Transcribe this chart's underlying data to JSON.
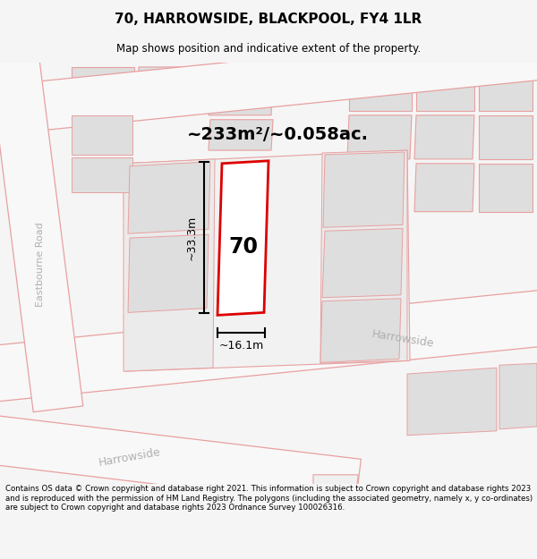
{
  "title": "70, HARROWSIDE, BLACKPOOL, FY4 1LR",
  "subtitle": "Map shows position and indicative extent of the property.",
  "area_text": "~233m²/~0.058ac.",
  "width_text": "~16.1m",
  "height_text": "~33.3m",
  "label_text": "70",
  "footer": "Contains OS data © Crown copyright and database right 2021. This information is subject to Crown copyright and database rights 2023 and is reproduced with the permission of HM Land Registry. The polygons (including the associated geometry, namely x, y co-ordinates) are subject to Crown copyright and database rights 2023 Ordnance Survey 100026316.",
  "bg_color": "#f5f5f5",
  "map_bg": "#ffffff",
  "building_fill": "#dedede",
  "road_line": "#e8a0a0",
  "highlight_line": "#dd0000",
  "street_color": "#b0b0b0",
  "street_name_harrowside1": "Harrowside",
  "street_name_harrowside2": "Harrowside",
  "street_name_eastbourne": "Eastbourne Road"
}
